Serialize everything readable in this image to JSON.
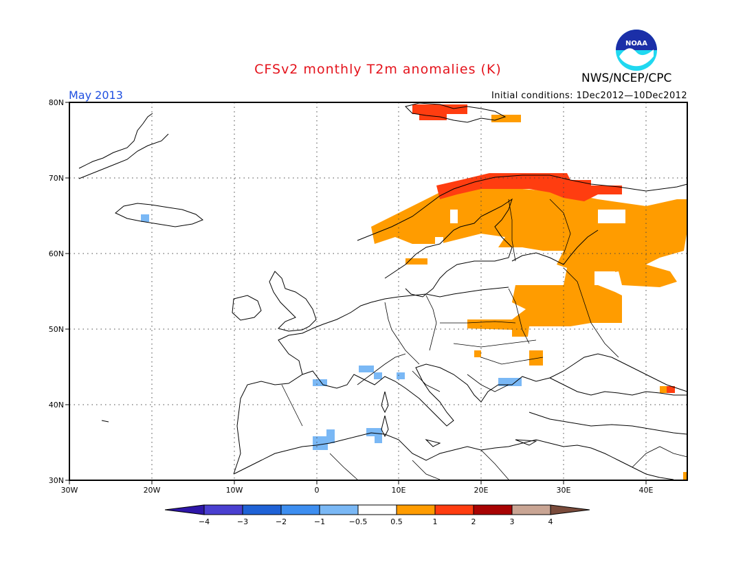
{
  "title": "CFSv2 monthly T2m anomalies (K)",
  "agency": "NWS/NCEP/CPC",
  "logo_text": "NOAA",
  "month_label": "May 2013",
  "initial_conditions": "Initial conditions: 1Dec2012—10Dec2012",
  "map": {
    "lon_range": [
      -30,
      45
    ],
    "lat_range": [
      30,
      80
    ],
    "lon_ticks": [
      "30W",
      "20W",
      "10W",
      "0",
      "10E",
      "20E",
      "30E",
      "40E"
    ],
    "lat_ticks": [
      "30N",
      "40N",
      "50N",
      "60N",
      "70N",
      "80N"
    ],
    "grid": true
  },
  "colorbar": {
    "labels": [
      "−4",
      "−3",
      "−2",
      "−1",
      "−0.5",
      "0.5",
      "1",
      "2",
      "3",
      "4"
    ],
    "colors": [
      "#2e16a8",
      "#4a3fd0",
      "#1f62d6",
      "#3d8ef0",
      "#7ab8f5",
      "#ffffff",
      "#ff9c00",
      "#ff3d10",
      "#a80303",
      "#c9a594",
      "#7a4b3b"
    ]
  },
  "colors": {
    "title": "#e4121b",
    "month": "#1f4fe0",
    "positive_1": "#ff9c00",
    "positive_2": "#ff3d10",
    "negative_1": "#7ab8f5"
  }
}
